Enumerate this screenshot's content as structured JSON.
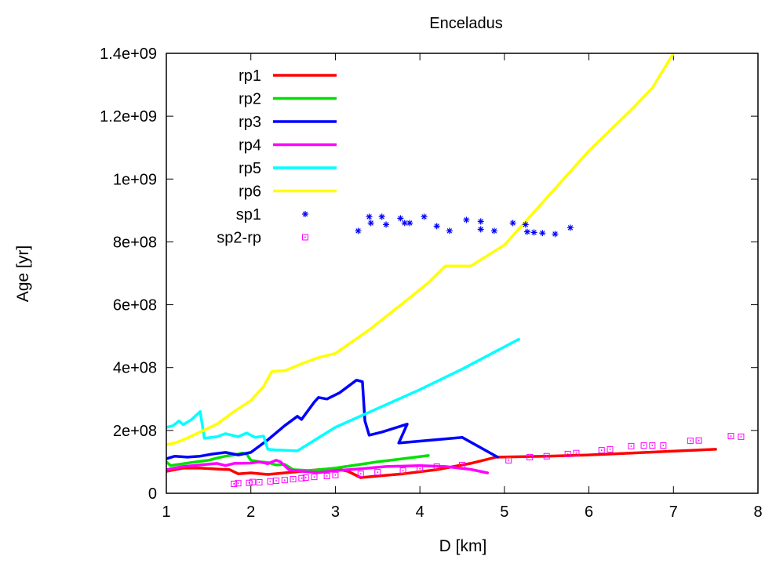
{
  "chart_data": {
    "type": "line",
    "title": "Enceladus",
    "xlabel": "D [km]",
    "ylabel": "Age [yr]",
    "xlim": [
      1,
      8
    ],
    "ylim": [
      0,
      1400000000
    ],
    "x_ticks": [
      1,
      2,
      3,
      4,
      5,
      6,
      7,
      8
    ],
    "x_tick_labels": [
      "1",
      "2",
      "3",
      "4",
      "5",
      "6",
      "7",
      "8"
    ],
    "y_ticks": [
      0,
      200000000,
      400000000,
      600000000,
      800000000,
      1000000000,
      1200000000,
      1400000000
    ],
    "y_tick_labels": [
      "0",
      "2e+08",
      "4e+08",
      "6e+08",
      "8e+08",
      "1e+09",
      "1.2e+09",
      "1.4e+09"
    ],
    "grid": false,
    "legend_position": "top-left",
    "series": [
      {
        "name": "rp1",
        "style": "line",
        "color": "#ff0000",
        "points": [
          [
            1.0,
            70000000
          ],
          [
            1.1,
            75000000
          ],
          [
            1.2,
            80000000
          ],
          [
            1.4,
            80000000
          ],
          [
            1.6,
            77000000
          ],
          [
            1.75,
            75000000
          ],
          [
            1.85,
            62000000
          ],
          [
            2.0,
            65000000
          ],
          [
            2.2,
            60000000
          ],
          [
            2.4,
            65000000
          ],
          [
            2.6,
            70000000
          ],
          [
            2.8,
            75000000
          ],
          [
            3.0,
            78000000
          ],
          [
            3.15,
            70000000
          ],
          [
            3.3,
            50000000
          ],
          [
            3.5,
            55000000
          ],
          [
            3.8,
            62000000
          ],
          [
            4.2,
            75000000
          ],
          [
            4.6,
            95000000
          ],
          [
            4.9,
            115000000
          ],
          [
            5.5,
            118000000
          ],
          [
            6.0,
            122000000
          ],
          [
            6.5,
            128000000
          ],
          [
            7.0,
            134000000
          ],
          [
            7.5,
            140000000
          ]
        ]
      },
      {
        "name": "rp2",
        "style": "line",
        "color": "#00e000",
        "points": [
          [
            1.0,
            100000000
          ],
          [
            1.05,
            88000000
          ],
          [
            1.15,
            92000000
          ],
          [
            1.3,
            98000000
          ],
          [
            1.5,
            105000000
          ],
          [
            1.6,
            112000000
          ],
          [
            1.7,
            118000000
          ],
          [
            1.8,
            122000000
          ],
          [
            1.9,
            128000000
          ],
          [
            1.95,
            125000000
          ],
          [
            2.0,
            105000000
          ],
          [
            2.1,
            100000000
          ],
          [
            2.2,
            98000000
          ],
          [
            2.3,
            90000000
          ],
          [
            2.4,
            92000000
          ],
          [
            2.5,
            75000000
          ],
          [
            2.7,
            72000000
          ],
          [
            3.0,
            80000000
          ],
          [
            3.5,
            100000000
          ],
          [
            4.1,
            120000000
          ]
        ]
      },
      {
        "name": "rp3",
        "style": "line",
        "color": "#0000ff",
        "points": [
          [
            1.0,
            110000000
          ],
          [
            1.1,
            118000000
          ],
          [
            1.25,
            115000000
          ],
          [
            1.4,
            118000000
          ],
          [
            1.55,
            125000000
          ],
          [
            1.7,
            130000000
          ],
          [
            1.85,
            122000000
          ],
          [
            2.0,
            130000000
          ],
          [
            2.2,
            170000000
          ],
          [
            2.4,
            215000000
          ],
          [
            2.55,
            245000000
          ],
          [
            2.6,
            235000000
          ],
          [
            2.75,
            290000000
          ],
          [
            2.8,
            305000000
          ],
          [
            2.9,
            300000000
          ],
          [
            3.05,
            320000000
          ],
          [
            3.25,
            360000000
          ],
          [
            3.32,
            355000000
          ],
          [
            3.35,
            230000000
          ],
          [
            3.4,
            185000000
          ],
          [
            3.55,
            195000000
          ],
          [
            3.85,
            220000000
          ],
          [
            3.75,
            160000000
          ],
          [
            4.5,
            178000000
          ],
          [
            4.92,
            115000000
          ]
        ]
      },
      {
        "name": "rp4",
        "style": "line",
        "color": "#ff00ff",
        "points": [
          [
            1.0,
            75000000
          ],
          [
            1.2,
            85000000
          ],
          [
            1.4,
            90000000
          ],
          [
            1.6,
            95000000
          ],
          [
            1.7,
            88000000
          ],
          [
            1.8,
            95000000
          ],
          [
            2.0,
            96000000
          ],
          [
            2.1,
            100000000
          ],
          [
            2.2,
            94000000
          ],
          [
            2.3,
            105000000
          ],
          [
            2.35,
            100000000
          ],
          [
            2.45,
            75000000
          ],
          [
            2.6,
            70000000
          ],
          [
            2.8,
            66000000
          ],
          [
            3.0,
            72000000
          ],
          [
            3.3,
            78000000
          ],
          [
            3.6,
            85000000
          ],
          [
            4.0,
            88000000
          ],
          [
            4.3,
            85000000
          ],
          [
            4.6,
            76000000
          ],
          [
            4.8,
            65000000
          ]
        ]
      },
      {
        "name": "rp5",
        "style": "line",
        "color": "#00ffff",
        "points": [
          [
            1.0,
            210000000
          ],
          [
            1.08,
            215000000
          ],
          [
            1.15,
            230000000
          ],
          [
            1.2,
            218000000
          ],
          [
            1.3,
            235000000
          ],
          [
            1.4,
            260000000
          ],
          [
            1.45,
            175000000
          ],
          [
            1.6,
            180000000
          ],
          [
            1.7,
            190000000
          ],
          [
            1.85,
            180000000
          ],
          [
            1.95,
            192000000
          ],
          [
            2.05,
            178000000
          ],
          [
            2.15,
            182000000
          ],
          [
            2.2,
            140000000
          ],
          [
            2.3,
            138000000
          ],
          [
            2.55,
            135000000
          ],
          [
            3.0,
            210000000
          ],
          [
            3.5,
            270000000
          ],
          [
            4.0,
            330000000
          ],
          [
            4.5,
            395000000
          ],
          [
            5.17,
            490000000
          ]
        ]
      },
      {
        "name": "rp6",
        "style": "line",
        "color": "#ffff00",
        "points": [
          [
            1.0,
            155000000
          ],
          [
            1.1,
            160000000
          ],
          [
            1.2,
            170000000
          ],
          [
            1.4,
            195000000
          ],
          [
            1.6,
            220000000
          ],
          [
            1.8,
            260000000
          ],
          [
            2.0,
            295000000
          ],
          [
            2.15,
            340000000
          ],
          [
            2.25,
            388000000
          ],
          [
            2.4,
            390000000
          ],
          [
            2.6,
            412000000
          ],
          [
            2.8,
            432000000
          ],
          [
            3.0,
            445000000
          ],
          [
            3.4,
            520000000
          ],
          [
            3.8,
            605000000
          ],
          [
            4.1,
            670000000
          ],
          [
            4.3,
            723000000
          ],
          [
            4.6,
            723000000
          ],
          [
            5.0,
            790000000
          ],
          [
            5.3,
            880000000
          ],
          [
            6.0,
            1090000000
          ],
          [
            6.5,
            1220000000
          ],
          [
            6.75,
            1290000000
          ],
          [
            7.0,
            1400000000
          ]
        ]
      },
      {
        "name": "sp1",
        "style": "points",
        "marker": "star",
        "color": "#0000ff",
        "points": [
          [
            3.27,
            835000000
          ],
          [
            3.4,
            880000000
          ],
          [
            3.42,
            860000000
          ],
          [
            3.55,
            880000000
          ],
          [
            3.6,
            855000000
          ],
          [
            3.77,
            875000000
          ],
          [
            3.82,
            860000000
          ],
          [
            3.88,
            860000000
          ],
          [
            4.05,
            880000000
          ],
          [
            4.2,
            850000000
          ],
          [
            4.35,
            835000000
          ],
          [
            4.55,
            870000000
          ],
          [
            4.72,
            865000000
          ],
          [
            4.72,
            840000000
          ],
          [
            4.88,
            835000000
          ],
          [
            5.1,
            860000000
          ],
          [
            5.25,
            855000000
          ],
          [
            5.27,
            832000000
          ],
          [
            5.35,
            830000000
          ],
          [
            5.45,
            828000000
          ],
          [
            5.6,
            825000000
          ],
          [
            5.78,
            845000000
          ]
        ]
      },
      {
        "name": "sp2-rp",
        "style": "points",
        "marker": "square-dot",
        "color": "#ff00ff",
        "points": [
          [
            1.8,
            30000000
          ],
          [
            1.85,
            32000000
          ],
          [
            1.98,
            33000000
          ],
          [
            2.02,
            36000000
          ],
          [
            2.1,
            35000000
          ],
          [
            2.23,
            38000000
          ],
          [
            2.3,
            40000000
          ],
          [
            2.4,
            42000000
          ],
          [
            2.5,
            45000000
          ],
          [
            2.6,
            48000000
          ],
          [
            2.65,
            50000000
          ],
          [
            2.75,
            52000000
          ],
          [
            2.9,
            55000000
          ],
          [
            3.0,
            58000000
          ],
          [
            3.3,
            62000000
          ],
          [
            3.5,
            67000000
          ],
          [
            3.8,
            72000000
          ],
          [
            4.0,
            78000000
          ],
          [
            4.2,
            85000000
          ],
          [
            4.5,
            90000000
          ],
          [
            5.05,
            105000000
          ],
          [
            5.3,
            115000000
          ],
          [
            5.5,
            118000000
          ],
          [
            5.75,
            125000000
          ],
          [
            5.85,
            128000000
          ],
          [
            6.15,
            137000000
          ],
          [
            6.25,
            140000000
          ],
          [
            6.5,
            150000000
          ],
          [
            6.65,
            152000000
          ],
          [
            6.75,
            152000000
          ],
          [
            6.88,
            152000000
          ],
          [
            7.2,
            167000000
          ],
          [
            7.3,
            168000000
          ],
          [
            7.68,
            182000000
          ],
          [
            7.8,
            180000000
          ]
        ]
      }
    ]
  }
}
